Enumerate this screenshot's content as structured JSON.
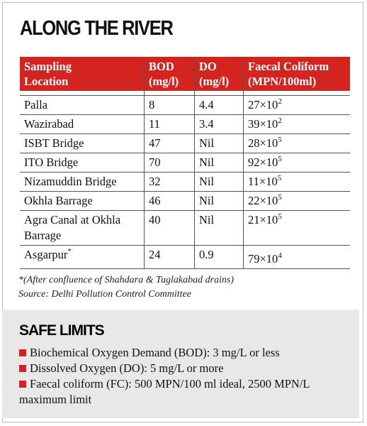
{
  "title": "ALONG THE RIVER",
  "table": {
    "header": [
      [
        "Sampling",
        "Location"
      ],
      [
        "BOD",
        "(mg/l)"
      ],
      [
        "DO",
        "(mg/l)"
      ],
      [
        "Faecal Coliform",
        "(MPN/100ml)"
      ]
    ],
    "rows": [
      {
        "location": "Palla",
        "bod": "8",
        "do": "4.4",
        "fc": {
          "base": "27×10",
          "exp": "2"
        }
      },
      {
        "location": "Wazirabad",
        "bod": "11",
        "do": "3.4",
        "fc": {
          "base": "39×10",
          "exp": "2"
        }
      },
      {
        "location": "ISBT Bridge",
        "bod": "47",
        "do": "Nil",
        "fc": {
          "base": "28×10",
          "exp": "5"
        }
      },
      {
        "location": "ITO Bridge",
        "bod": "70",
        "do": "Nil",
        "fc": {
          "base": "92×10",
          "exp": "5"
        }
      },
      {
        "location": "Nizamuddin Bridge",
        "bod": "32",
        "do": "Nil",
        "fc": {
          "base": "11×10",
          "exp": "5"
        }
      },
      {
        "location": "Okhla Barrage",
        "bod": "46",
        "do": "Nil",
        "fc": {
          "base": "22×10",
          "exp": "5"
        }
      },
      {
        "location": "Agra Canal at Okhla Barrage",
        "bod": "40",
        "do": "Nil",
        "fc": {
          "base": "21×10",
          "exp": "5"
        }
      },
      {
        "location": "Asgarpur",
        "mark": "*",
        "bod": "24",
        "do": "0.9",
        "fc": {
          "base": "79×10",
          "exp": "4"
        }
      }
    ]
  },
  "footnote": "*(After confluence of Shahdara & Tuglakabad drains)",
  "source": "Source: Delhi Pollution Control Committee",
  "limits": {
    "title": "SAFE LIMITS",
    "items": [
      "Biochemical Oxygen Demand (BOD): 3 mg/L or less",
      "Dissolved Oxygen (DO): 5 mg/L or more",
      "Faecal coliform (FC): 500 MPN/100 ml ideal, 2500 MPN/L maximum limit"
    ]
  }
}
